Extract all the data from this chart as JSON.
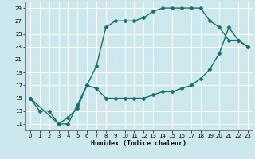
{
  "xlabel": "Humidex (Indice chaleur)",
  "bg_color": "#cce8ec",
  "grid_color": "#ffffff",
  "line_color": "#1a6e6a",
  "xlim": [
    -0.5,
    23.5
  ],
  "ylim": [
    10.0,
    30.0
  ],
  "xticks": [
    0,
    1,
    2,
    3,
    4,
    5,
    6,
    7,
    8,
    9,
    10,
    11,
    12,
    13,
    14,
    15,
    16,
    17,
    18,
    19,
    20,
    21,
    22,
    23
  ],
  "yticks": [
    11,
    13,
    15,
    17,
    19,
    21,
    23,
    25,
    27,
    29
  ],
  "line1_x": [
    0,
    1,
    2,
    3,
    4,
    5,
    6,
    7,
    8,
    9,
    10,
    11,
    12,
    13,
    14,
    15,
    16,
    17,
    18,
    19,
    20,
    21,
    22,
    23
  ],
  "line1_y": [
    15,
    13,
    13,
    11,
    11,
    14,
    17,
    20,
    26,
    27,
    27,
    27,
    27.5,
    28.5,
    29,
    29,
    29,
    29,
    29,
    27,
    26,
    24,
    24,
    23
  ],
  "line2_x": [
    0,
    3,
    4,
    5,
    6,
    7,
    8,
    9,
    10,
    11,
    12,
    13,
    14,
    15,
    16,
    17,
    18,
    19,
    20,
    21,
    22,
    23
  ],
  "line2_y": [
    15,
    11,
    12,
    13.5,
    17,
    16.5,
    15,
    15,
    15,
    15,
    15,
    15.5,
    16,
    16,
    16.5,
    17,
    18,
    19.5,
    22,
    26,
    24,
    23
  ],
  "marker": "D",
  "markersize": 2.5,
  "linewidth": 1.0
}
